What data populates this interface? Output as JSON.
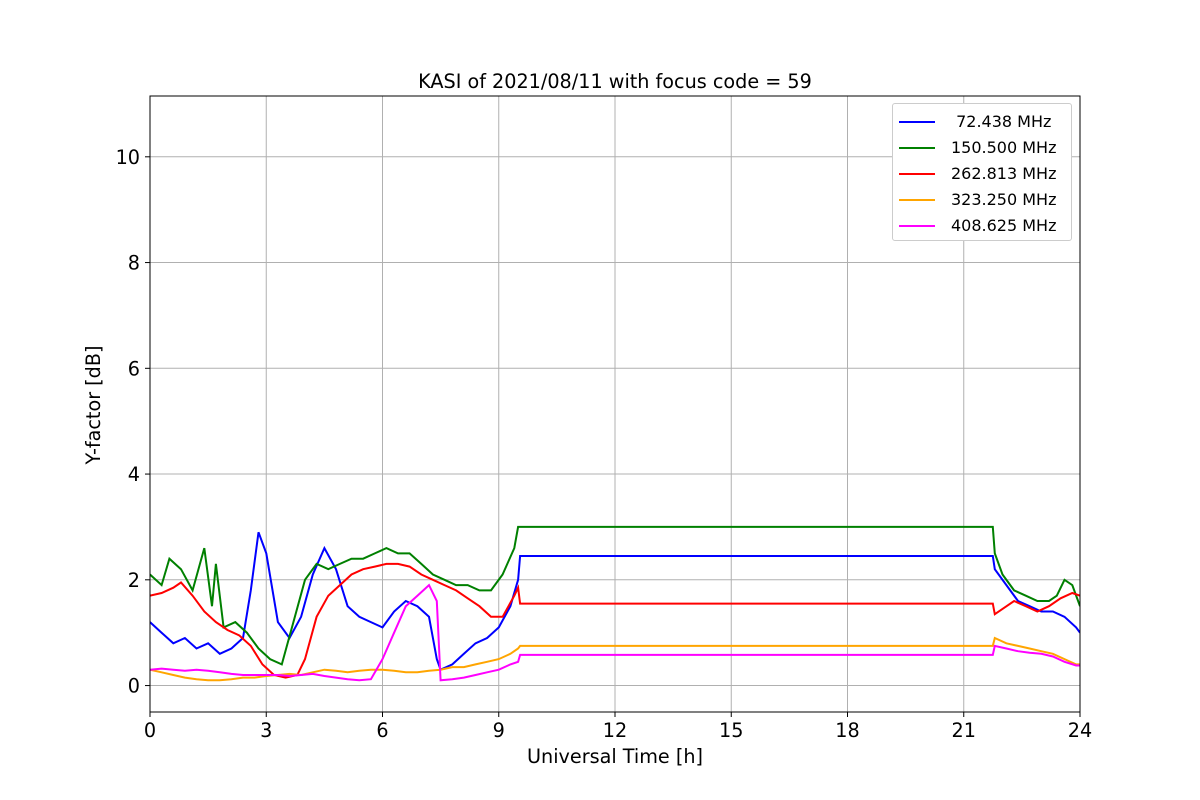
{
  "chart_data": {
    "type": "line",
    "title": "KASI of 2021/08/11 with focus code = 59",
    "xlabel": "Universal Time [h]",
    "ylabel": "Y-factor [dB]",
    "xlim": [
      0,
      24
    ],
    "ylim": [
      -0.5,
      11.15
    ],
    "x_ticks": [
      0,
      3,
      6,
      9,
      12,
      15,
      18,
      21,
      24
    ],
    "x_tick_labels": [
      "0",
      "3",
      "6",
      "9",
      "12",
      "15",
      "18",
      "21",
      "24"
    ],
    "y_ticks": [
      0,
      2,
      4,
      6,
      8,
      10
    ],
    "y_tick_labels": [
      "0",
      "2",
      "4",
      "6",
      "8",
      "10"
    ],
    "grid": true,
    "legend_position": "top-right",
    "series": [
      {
        "name": " 72.438 MHz",
        "color": "#0000ff",
        "x": [
          0,
          0.3,
          0.6,
          0.9,
          1.2,
          1.5,
          1.8,
          2.1,
          2.4,
          2.6,
          2.8,
          3.0,
          3.3,
          3.6,
          3.9,
          4.2,
          4.5,
          4.8,
          5.1,
          5.4,
          5.7,
          6.0,
          6.3,
          6.6,
          6.9,
          7.2,
          7.4,
          7.5,
          7.8,
          8.1,
          8.4,
          8.7,
          9.0,
          9.3,
          9.5,
          9.55,
          21.75,
          21.8,
          22.1,
          22.4,
          22.7,
          23.0,
          23.3,
          23.6,
          23.9,
          24.0
        ],
        "y": [
          1.2,
          1.0,
          0.8,
          0.9,
          0.7,
          0.8,
          0.6,
          0.7,
          0.9,
          1.8,
          2.9,
          2.5,
          1.2,
          0.9,
          1.3,
          2.1,
          2.6,
          2.2,
          1.5,
          1.3,
          1.2,
          1.1,
          1.4,
          1.6,
          1.5,
          1.3,
          0.5,
          0.3,
          0.4,
          0.6,
          0.8,
          0.9,
          1.1,
          1.5,
          2.0,
          2.45,
          2.45,
          2.2,
          1.9,
          1.6,
          1.5,
          1.4,
          1.4,
          1.3,
          1.1,
          1.0
        ]
      },
      {
        "name": "150.500 MHz",
        "color": "#008000",
        "x": [
          0,
          0.3,
          0.5,
          0.8,
          1.1,
          1.4,
          1.6,
          1.7,
          1.9,
          2.2,
          2.5,
          2.8,
          3.1,
          3.4,
          3.7,
          4.0,
          4.3,
          4.6,
          4.9,
          5.2,
          5.5,
          5.8,
          6.1,
          6.4,
          6.7,
          7.0,
          7.3,
          7.6,
          7.9,
          8.2,
          8.5,
          8.8,
          9.1,
          9.4,
          9.5,
          9.55,
          21.75,
          21.8,
          22.0,
          22.3,
          22.6,
          22.9,
          23.2,
          23.4,
          23.6,
          23.8,
          24.0
        ],
        "y": [
          2.1,
          1.9,
          2.4,
          2.2,
          1.8,
          2.6,
          1.5,
          2.3,
          1.1,
          1.2,
          1.0,
          0.7,
          0.5,
          0.4,
          1.2,
          2.0,
          2.3,
          2.2,
          2.3,
          2.4,
          2.4,
          2.5,
          2.6,
          2.5,
          2.5,
          2.3,
          2.1,
          2.0,
          1.9,
          1.9,
          1.8,
          1.8,
          2.1,
          2.6,
          3.0,
          3.0,
          3.0,
          2.5,
          2.1,
          1.8,
          1.7,
          1.6,
          1.6,
          1.7,
          2.0,
          1.9,
          1.5
        ]
      },
      {
        "name": "262.813 MHz",
        "color": "#ff0000",
        "x": [
          0,
          0.3,
          0.6,
          0.8,
          1.1,
          1.4,
          1.7,
          2.0,
          2.3,
          2.6,
          2.9,
          3.2,
          3.5,
          3.8,
          4.0,
          4.3,
          4.6,
          4.9,
          5.2,
          5.5,
          5.8,
          6.1,
          6.4,
          6.7,
          7.0,
          7.3,
          7.6,
          7.9,
          8.2,
          8.5,
          8.8,
          9.1,
          9.4,
          9.5,
          9.55,
          21.75,
          21.8,
          22.0,
          22.3,
          22.6,
          22.9,
          23.2,
          23.5,
          23.8,
          24.0
        ],
        "y": [
          1.7,
          1.75,
          1.85,
          1.95,
          1.7,
          1.4,
          1.2,
          1.05,
          0.95,
          0.75,
          0.4,
          0.2,
          0.15,
          0.2,
          0.5,
          1.3,
          1.7,
          1.9,
          2.1,
          2.2,
          2.25,
          2.3,
          2.3,
          2.25,
          2.1,
          2.0,
          1.9,
          1.8,
          1.65,
          1.5,
          1.3,
          1.3,
          1.7,
          1.85,
          1.55,
          1.55,
          1.35,
          1.45,
          1.6,
          1.5,
          1.4,
          1.5,
          1.65,
          1.75,
          1.7
        ]
      },
      {
        "name": "323.250 MHz",
        "color": "#ffa500",
        "x": [
          0,
          0.3,
          0.6,
          0.9,
          1.2,
          1.5,
          1.8,
          2.1,
          2.4,
          2.7,
          3.0,
          3.3,
          3.6,
          3.9,
          4.2,
          4.5,
          4.8,
          5.1,
          5.4,
          5.7,
          6.0,
          6.3,
          6.6,
          6.9,
          7.2,
          7.5,
          7.8,
          8.1,
          8.4,
          8.7,
          9.0,
          9.3,
          9.5,
          9.55,
          21.75,
          21.8,
          22.1,
          22.4,
          22.7,
          23.0,
          23.3,
          23.6,
          23.9,
          24.0
        ],
        "y": [
          0.3,
          0.25,
          0.2,
          0.15,
          0.12,
          0.1,
          0.1,
          0.12,
          0.15,
          0.15,
          0.18,
          0.2,
          0.22,
          0.2,
          0.25,
          0.3,
          0.28,
          0.25,
          0.28,
          0.3,
          0.3,
          0.28,
          0.25,
          0.25,
          0.28,
          0.3,
          0.35,
          0.35,
          0.4,
          0.45,
          0.5,
          0.6,
          0.7,
          0.75,
          0.75,
          0.9,
          0.8,
          0.75,
          0.7,
          0.65,
          0.6,
          0.5,
          0.4,
          0.4
        ]
      },
      {
        "name": "408.625 MHz",
        "color": "#ff00ff",
        "x": [
          0,
          0.3,
          0.6,
          0.9,
          1.2,
          1.5,
          1.8,
          2.1,
          2.4,
          2.7,
          3.0,
          3.3,
          3.6,
          3.9,
          4.2,
          4.5,
          4.8,
          5.1,
          5.4,
          5.7,
          6.0,
          6.3,
          6.6,
          6.9,
          7.2,
          7.4,
          7.5,
          7.8,
          8.1,
          8.4,
          8.7,
          9.0,
          9.3,
          9.5,
          9.55,
          21.75,
          21.8,
          22.1,
          22.4,
          22.7,
          23.0,
          23.3,
          23.6,
          23.9,
          24.0
        ],
        "y": [
          0.3,
          0.32,
          0.3,
          0.28,
          0.3,
          0.28,
          0.25,
          0.22,
          0.2,
          0.2,
          0.2,
          0.2,
          0.18,
          0.2,
          0.22,
          0.18,
          0.15,
          0.12,
          0.1,
          0.12,
          0.5,
          1.0,
          1.5,
          1.7,
          1.9,
          1.6,
          0.1,
          0.12,
          0.15,
          0.2,
          0.25,
          0.3,
          0.4,
          0.45,
          0.58,
          0.58,
          0.75,
          0.7,
          0.65,
          0.62,
          0.6,
          0.55,
          0.45,
          0.38,
          0.38
        ]
      }
    ]
  }
}
